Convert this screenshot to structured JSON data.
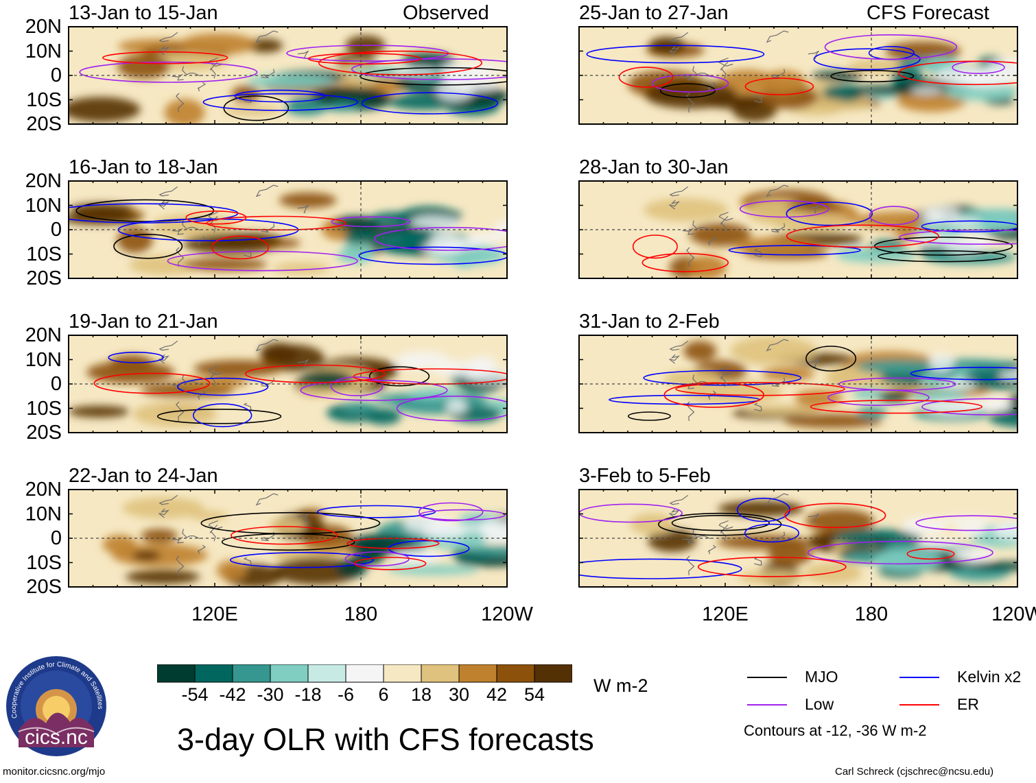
{
  "chart_data": {
    "type": "heatmap",
    "title": "3-day OLR with CFS forecasts",
    "variable": "OLR anomaly",
    "units": "W m-2",
    "lat_range": [
      -20,
      20
    ],
    "lon_range": [
      60,
      240
    ],
    "y_ticks": [
      "20N",
      "10N",
      "0",
      "10S",
      "20S"
    ],
    "x_ticks": [
      "120E",
      "180",
      "120W"
    ],
    "panel_labels": {
      "observed": "Observed",
      "forecast": "CFS Forecast"
    },
    "panels": [
      {
        "title": "13-Jan to 15-Jan",
        "source": "Observed"
      },
      {
        "title": "16-Jan to 18-Jan",
        "source": "Observed"
      },
      {
        "title": "19-Jan to 21-Jan",
        "source": "Observed"
      },
      {
        "title": "22-Jan to 24-Jan",
        "source": "Observed"
      },
      {
        "title": "25-Jan to 27-Jan",
        "source": "CFS Forecast"
      },
      {
        "title": "28-Jan to 30-Jan",
        "source": "CFS Forecast"
      },
      {
        "title": "31-Jan to 2-Feb",
        "source": "CFS Forecast"
      },
      {
        "title": "3-Feb to 5-Feb",
        "source": "CFS Forecast"
      }
    ],
    "colorbar": {
      "ticks": [
        "-54",
        "-42",
        "-30",
        "-18",
        "-6",
        "6",
        "18",
        "30",
        "42",
        "54"
      ],
      "colors": [
        "#003c30",
        "#01665e",
        "#35978f",
        "#80cdc1",
        "#c7eae5",
        "#f5f5f5",
        "#f6e8c3",
        "#dfc27d",
        "#bf812d",
        "#8c510a",
        "#543005"
      ]
    },
    "legend": [
      {
        "label": "MJO",
        "color": "#000000"
      },
      {
        "label": "Kelvin x2",
        "color": "#0000ff"
      },
      {
        "label": "Low",
        "color": "#a020f0"
      },
      {
        "label": "ER",
        "color": "#ff0000"
      }
    ],
    "contour_note": "Contours at -12, -36 W m-2"
  },
  "logo": {
    "text": "cics.nc",
    "ring_text": "Cooperative Institute for Climate and Satellites"
  },
  "footer": {
    "left": "monitor.cicsnc.org/mjo",
    "right": "Carl Schreck (cjschrec@ncsu.edu)"
  }
}
